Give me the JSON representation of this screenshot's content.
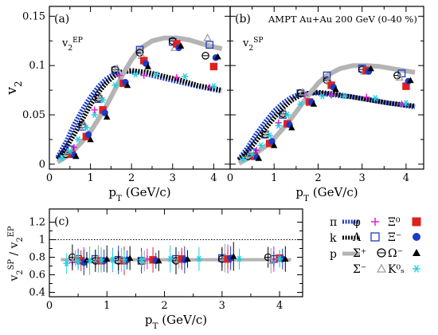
{
  "chart_data": [
    {
      "type": "line",
      "panel_label": "(a)",
      "annotation_main": "v",
      "annotation_sub": "2",
      "annotation_sup": "EP",
      "title": "",
      "xlabel_main": "p",
      "xlabel_sub": "T",
      "xlabel_rest": " (GeV/c)",
      "ylabel_main": "v",
      "ylabel_sub": "2",
      "xlim": [
        0,
        4.4
      ],
      "ylim": [
        -0.005,
        0.16
      ],
      "xticks": [
        0,
        1,
        2,
        3,
        4
      ],
      "yticks": [
        0,
        0.05,
        0.1,
        0.15
      ],
      "ytick_labels": [
        "0",
        "0.05",
        "0.1",
        "0.15"
      ],
      "xtick_labels": [
        "0",
        "1",
        "2",
        "3",
        "4"
      ],
      "bands": [
        {
          "name": "π",
          "color": "#1a3cc8",
          "style": "dotted",
          "x": [
            0.2,
            0.4,
            0.6,
            0.8,
            1.0,
            1.2,
            1.4,
            1.6,
            1.8,
            2.0,
            2.4,
            2.8,
            3.2,
            3.6,
            4.2
          ],
          "y": [
            0.007,
            0.022,
            0.04,
            0.055,
            0.068,
            0.079,
            0.087,
            0.092,
            0.094,
            0.094,
            0.091,
            0.087,
            0.083,
            0.079,
            0.074
          ]
        },
        {
          "name": "k",
          "color": "#000000",
          "style": "dotted",
          "x": [
            0.2,
            0.4,
            0.6,
            0.8,
            1.0,
            1.2,
            1.4,
            1.6,
            1.8,
            2.0,
            2.4,
            2.8,
            3.2,
            3.6,
            4.2
          ],
          "y": [
            0.005,
            0.016,
            0.03,
            0.045,
            0.06,
            0.073,
            0.083,
            0.09,
            0.094,
            0.095,
            0.093,
            0.089,
            0.085,
            0.08,
            0.075
          ]
        },
        {
          "name": "p",
          "color": "#b4b4b4",
          "style": "solid",
          "x": [
            0.2,
            0.5,
            0.8,
            1.0,
            1.2,
            1.4,
            1.6,
            1.8,
            2.0,
            2.2,
            2.5,
            2.8,
            3.1,
            3.4,
            3.8,
            4.2
          ],
          "y": [
            0.002,
            0.01,
            0.023,
            0.033,
            0.046,
            0.06,
            0.076,
            0.092,
            0.106,
            0.117,
            0.125,
            0.128,
            0.128,
            0.126,
            0.121,
            0.117
          ]
        }
      ],
      "markers": [
        {
          "name": "φ",
          "shape": "plus",
          "color": "#e020d0",
          "x": [
            0.6,
            1.1,
            1.7,
            2.3,
            3.1,
            3.9
          ],
          "y": [
            0.017,
            0.055,
            0.09,
            0.09,
            0.088,
            0.078
          ]
        },
        {
          "name": "Λ",
          "shape": "open-square",
          "color": "#1a3cc8",
          "x": [
            0.5,
            0.8,
            1.2,
            1.6,
            2.2,
            3.0,
            3.9
          ],
          "y": [
            0.015,
            0.038,
            0.066,
            0.095,
            0.116,
            0.124,
            0.121
          ]
        },
        {
          "name": "Σ⁺",
          "shape": "open-circle-cross",
          "color": "#000000",
          "x": [
            0.4,
            0.8,
            1.2,
            1.6,
            2.2,
            3.0,
            3.8
          ],
          "y": [
            0.01,
            0.04,
            0.067,
            0.096,
            0.113,
            0.125,
            0.11
          ]
        },
        {
          "name": "Σ⁻",
          "shape": "open-triangle",
          "color": "#a0a0a0",
          "x": [
            0.45,
            0.85,
            1.25,
            1.65,
            2.25,
            3.05,
            3.85
          ],
          "y": [
            0.012,
            0.04,
            0.068,
            0.097,
            0.11,
            0.118,
            0.128
          ]
        },
        {
          "name": "Ξ⁰",
          "shape": "square",
          "color": "#e02020",
          "x": [
            0.55,
            0.9,
            1.3,
            1.8,
            2.3,
            3.1,
            4.0
          ],
          "y": [
            0.01,
            0.028,
            0.055,
            0.082,
            0.105,
            0.122,
            0.099
          ]
        },
        {
          "name": "Ξ⁻",
          "shape": "circle",
          "color": "#1a3cc8",
          "x": [
            0.6,
            0.95,
            1.35,
            1.85,
            2.35,
            3.15,
            4.05
          ],
          "y": [
            0.009,
            0.03,
            0.052,
            0.083,
            0.102,
            0.118,
            0.108
          ]
        },
        {
          "name": "Ω⁻",
          "shape": "triangle",
          "color": "#000000",
          "x": [
            0.65,
            1.0,
            1.4,
            1.9,
            2.4,
            3.2,
            4.1
          ],
          "y": [
            0.008,
            0.025,
            0.048,
            0.08,
            0.099,
            0.12,
            0.109
          ]
        },
        {
          "name": "K⁰ₛ",
          "shape": "asterisk",
          "color": "#20d0e0",
          "x": [
            0.3,
            0.5,
            0.7,
            0.9,
            1.1,
            1.3,
            1.6,
            2.1,
            2.6,
            3.3,
            4.0
          ],
          "y": [
            0.006,
            0.013,
            0.025,
            0.037,
            0.05,
            0.065,
            0.08,
            0.091,
            0.091,
            0.089,
            0.079
          ]
        }
      ]
    },
    {
      "type": "line",
      "panel_label": "(b)",
      "annotation_main": "v",
      "annotation_sub": "2",
      "annotation_sup": "SP",
      "title": "AMPT Au+Au 200 GeV (0-40 %)",
      "xlabel_main": "p",
      "xlabel_sub": "T",
      "xlabel_rest": " (GeV/c)",
      "xlim": [
        0,
        4.4
      ],
      "ylim": [
        -0.005,
        0.16
      ],
      "xticks": [
        0,
        1,
        2,
        3,
        4
      ],
      "xtick_labels": [
        "0",
        "1",
        "2",
        "3",
        "4"
      ],
      "bands": [
        {
          "name": "π",
          "color": "#1a3cc8",
          "style": "dotted",
          "x": [
            0.2,
            0.4,
            0.6,
            0.8,
            1.0,
            1.2,
            1.4,
            1.6,
            1.8,
            2.0,
            2.4,
            2.8,
            3.2,
            3.6,
            4.2
          ],
          "y": [
            0.005,
            0.017,
            0.031,
            0.043,
            0.054,
            0.062,
            0.068,
            0.071,
            0.072,
            0.072,
            0.07,
            0.068,
            0.065,
            0.062,
            0.058
          ]
        },
        {
          "name": "k",
          "color": "#000000",
          "style": "dotted",
          "x": [
            0.2,
            0.4,
            0.6,
            0.8,
            1.0,
            1.2,
            1.4,
            1.6,
            1.8,
            2.0,
            2.4,
            2.8,
            3.2,
            3.6,
            4.2
          ],
          "y": [
            0.004,
            0.013,
            0.024,
            0.036,
            0.047,
            0.057,
            0.065,
            0.07,
            0.072,
            0.073,
            0.071,
            0.068,
            0.065,
            0.062,
            0.059
          ]
        },
        {
          "name": "p",
          "color": "#b4b4b4",
          "style": "solid",
          "x": [
            0.2,
            0.5,
            0.8,
            1.0,
            1.2,
            1.4,
            1.6,
            1.8,
            2.0,
            2.2,
            2.5,
            2.8,
            3.1,
            3.4,
            3.8,
            4.2
          ],
          "y": [
            0.001,
            0.008,
            0.018,
            0.026,
            0.036,
            0.047,
            0.059,
            0.071,
            0.082,
            0.09,
            0.097,
            0.1,
            0.1,
            0.099,
            0.096,
            0.093
          ]
        }
      ],
      "markers": [
        {
          "name": "φ",
          "shape": "plus",
          "color": "#e020d0",
          "x": [
            0.6,
            1.1,
            1.7,
            2.3,
            3.1,
            3.9
          ],
          "y": [
            0.014,
            0.042,
            0.07,
            0.07,
            0.068,
            0.061
          ]
        },
        {
          "name": "Λ",
          "shape": "open-square",
          "color": "#1a3cc8",
          "x": [
            0.5,
            0.8,
            1.2,
            1.6,
            2.2,
            3.0,
            3.9
          ],
          "y": [
            0.012,
            0.03,
            0.05,
            0.072,
            0.09,
            0.097,
            0.092
          ]
        },
        {
          "name": "Σ⁺",
          "shape": "open-circle-cross",
          "color": "#000000",
          "x": [
            0.4,
            0.8,
            1.2,
            1.6,
            2.2,
            3.0,
            3.8
          ],
          "y": [
            0.008,
            0.03,
            0.051,
            0.072,
            0.085,
            0.096,
            0.09
          ]
        },
        {
          "name": "Σ⁻",
          "shape": "open-triangle",
          "color": "#a0a0a0",
          "x": [
            0.45,
            0.85,
            1.25,
            1.65,
            2.25,
            3.05,
            3.85
          ],
          "y": [
            0.01,
            0.031,
            0.052,
            0.073,
            0.085,
            0.094,
            0.088
          ]
        },
        {
          "name": "Ξ⁰",
          "shape": "square",
          "color": "#e02020",
          "x": [
            0.55,
            0.9,
            1.3,
            1.8,
            2.3,
            3.1,
            4.0
          ],
          "y": [
            0.008,
            0.021,
            0.041,
            0.063,
            0.08,
            0.095,
            0.079
          ]
        },
        {
          "name": "Ξ⁻",
          "shape": "circle",
          "color": "#1a3cc8",
          "x": [
            0.6,
            0.95,
            1.35,
            1.85,
            2.35,
            3.15,
            4.05
          ],
          "y": [
            0.007,
            0.023,
            0.04,
            0.063,
            0.078,
            0.094,
            0.084
          ]
        },
        {
          "name": "Ω⁻",
          "shape": "triangle",
          "color": "#000000",
          "x": [
            0.65,
            1.0,
            1.4,
            1.9,
            2.4,
            3.2,
            4.1
          ],
          "y": [
            0.006,
            0.019,
            0.037,
            0.061,
            0.076,
            0.097,
            0.085
          ]
        },
        {
          "name": "K⁰ₛ",
          "shape": "asterisk",
          "color": "#20d0e0",
          "x": [
            0.3,
            0.5,
            0.7,
            0.9,
            1.1,
            1.3,
            1.6,
            2.1,
            2.6,
            3.3,
            4.0
          ],
          "y": [
            0.005,
            0.01,
            0.019,
            0.029,
            0.039,
            0.05,
            0.061,
            0.069,
            0.069,
            0.067,
            0.062
          ]
        }
      ]
    },
    {
      "type": "line",
      "panel_label": "(c)",
      "xlabel_main": "p",
      "xlabel_sub": "T",
      "xlabel_rest": " (GeV/c)",
      "ylabel_main": "v",
      "ylabel_sub": "2",
      "ylabel_sup": "SP",
      "ylabel_den_main": "v",
      "ylabel_den_sub": "2",
      "ylabel_den_sup": "EP",
      "xlim": [
        0,
        4.4
      ],
      "ylim": [
        0.35,
        1.35
      ],
      "reference_line": 1.0,
      "xticks": [
        0,
        1,
        2,
        3,
        4
      ],
      "xtick_labels": [
        "0",
        "1",
        "2",
        "3",
        "4"
      ],
      "yticks": [
        0.4,
        0.6,
        0.8,
        1.0,
        1.2
      ],
      "ytick_labels": [
        "0.4",
        "0.6",
        "0.8",
        "1",
        "1.2"
      ],
      "band": {
        "name": "ratio",
        "color": "#b4b4b4",
        "x": [
          0.2,
          4.2
        ],
        "y": [
          0.77,
          0.79
        ]
      },
      "markers": [
        {
          "name": "φ",
          "shape": "plus",
          "color": "#e020d0",
          "x": [
            0.4,
            0.6,
            1.1,
            1.7,
            2.3,
            3.1,
            3.9
          ],
          "y": [
            0.74,
            0.76,
            0.77,
            0.78,
            0.78,
            0.78,
            0.78
          ]
        },
        {
          "name": "Λ",
          "shape": "open-square",
          "color": "#1a3cc8",
          "x": [
            0.5,
            0.8,
            1.2,
            1.6,
            2.2,
            3.0,
            3.9
          ],
          "y": [
            0.78,
            0.78,
            0.77,
            0.76,
            0.78,
            0.79,
            0.78
          ]
        },
        {
          "name": "Σ⁺",
          "shape": "open-circle-cross",
          "color": "#000000",
          "x": [
            0.4,
            0.8,
            1.2,
            1.6,
            2.2,
            3.0,
            3.8
          ],
          "y": [
            0.8,
            0.76,
            0.76,
            0.76,
            0.76,
            0.78,
            0.8
          ]
        },
        {
          "name": "Σ⁻",
          "shape": "open-triangle",
          "color": "#a0a0a0",
          "x": [
            0.45,
            0.85,
            1.25,
            1.65,
            2.25,
            3.05,
            3.85
          ],
          "y": [
            0.79,
            0.78,
            0.77,
            0.76,
            0.77,
            0.79,
            0.76
          ]
        },
        {
          "name": "Ξ⁰",
          "shape": "square",
          "color": "#e02020",
          "x": [
            0.55,
            0.9,
            1.3,
            1.8,
            2.3,
            3.1,
            4.0
          ],
          "y": [
            0.76,
            0.76,
            0.76,
            0.77,
            0.78,
            0.78,
            0.79
          ]
        },
        {
          "name": "Ξ⁻",
          "shape": "circle",
          "color": "#1a3cc8",
          "x": [
            0.6,
            0.95,
            1.35,
            1.85,
            2.35,
            3.15,
            4.05
          ],
          "y": [
            0.74,
            0.76,
            0.77,
            0.76,
            0.77,
            0.79,
            0.78
          ]
        },
        {
          "name": "Ω⁻",
          "shape": "triangle",
          "color": "#000000",
          "x": [
            0.65,
            1.0,
            1.4,
            1.9,
            2.4,
            3.2,
            4.1
          ],
          "y": [
            0.77,
            0.78,
            0.79,
            0.76,
            0.78,
            0.81,
            0.78
          ]
        },
        {
          "name": "K⁰ₛ",
          "shape": "asterisk",
          "color": "#20d0e0",
          "x": [
            0.3,
            0.5,
            0.7,
            0.9,
            1.1,
            1.3,
            1.6,
            2.1,
            2.6,
            3.3,
            4.0
          ],
          "y": [
            0.73,
            0.75,
            0.76,
            0.77,
            0.77,
            0.77,
            0.77,
            0.78,
            0.78,
            0.78,
            0.78
          ]
        }
      ]
    }
  ],
  "legend": {
    "entries": [
      {
        "label": "π",
        "kind": "band",
        "color": "#1a3cc8",
        "style": "dotted"
      },
      {
        "label": "k",
        "kind": "band",
        "color": "#000000",
        "style": "dotted"
      },
      {
        "label": "p",
        "kind": "band",
        "color": "#b4b4b4",
        "style": "solid"
      },
      {
        "label": "φ",
        "kind": "marker",
        "shape": "plus",
        "color": "#e020d0"
      },
      {
        "label": "Λ",
        "kind": "marker",
        "shape": "open-square",
        "color": "#1a3cc8"
      },
      {
        "label": "Σ⁺",
        "kind": "marker",
        "shape": "open-circle-cross",
        "color": "#000000"
      },
      {
        "label": "Σ⁻",
        "kind": "marker",
        "shape": "open-triangle",
        "color": "#a0a0a0"
      },
      {
        "label": "Ξ⁰",
        "kind": "marker",
        "shape": "square",
        "color": "#e02020"
      },
      {
        "label": "Ξ⁻",
        "kind": "marker",
        "shape": "circle",
        "color": "#1a3cc8"
      },
      {
        "label": "Ω⁻",
        "kind": "marker",
        "shape": "triangle",
        "color": "#000000"
      },
      {
        "label": "K⁰ₛ",
        "kind": "marker",
        "shape": "asterisk",
        "color": "#20d0e0"
      }
    ]
  }
}
